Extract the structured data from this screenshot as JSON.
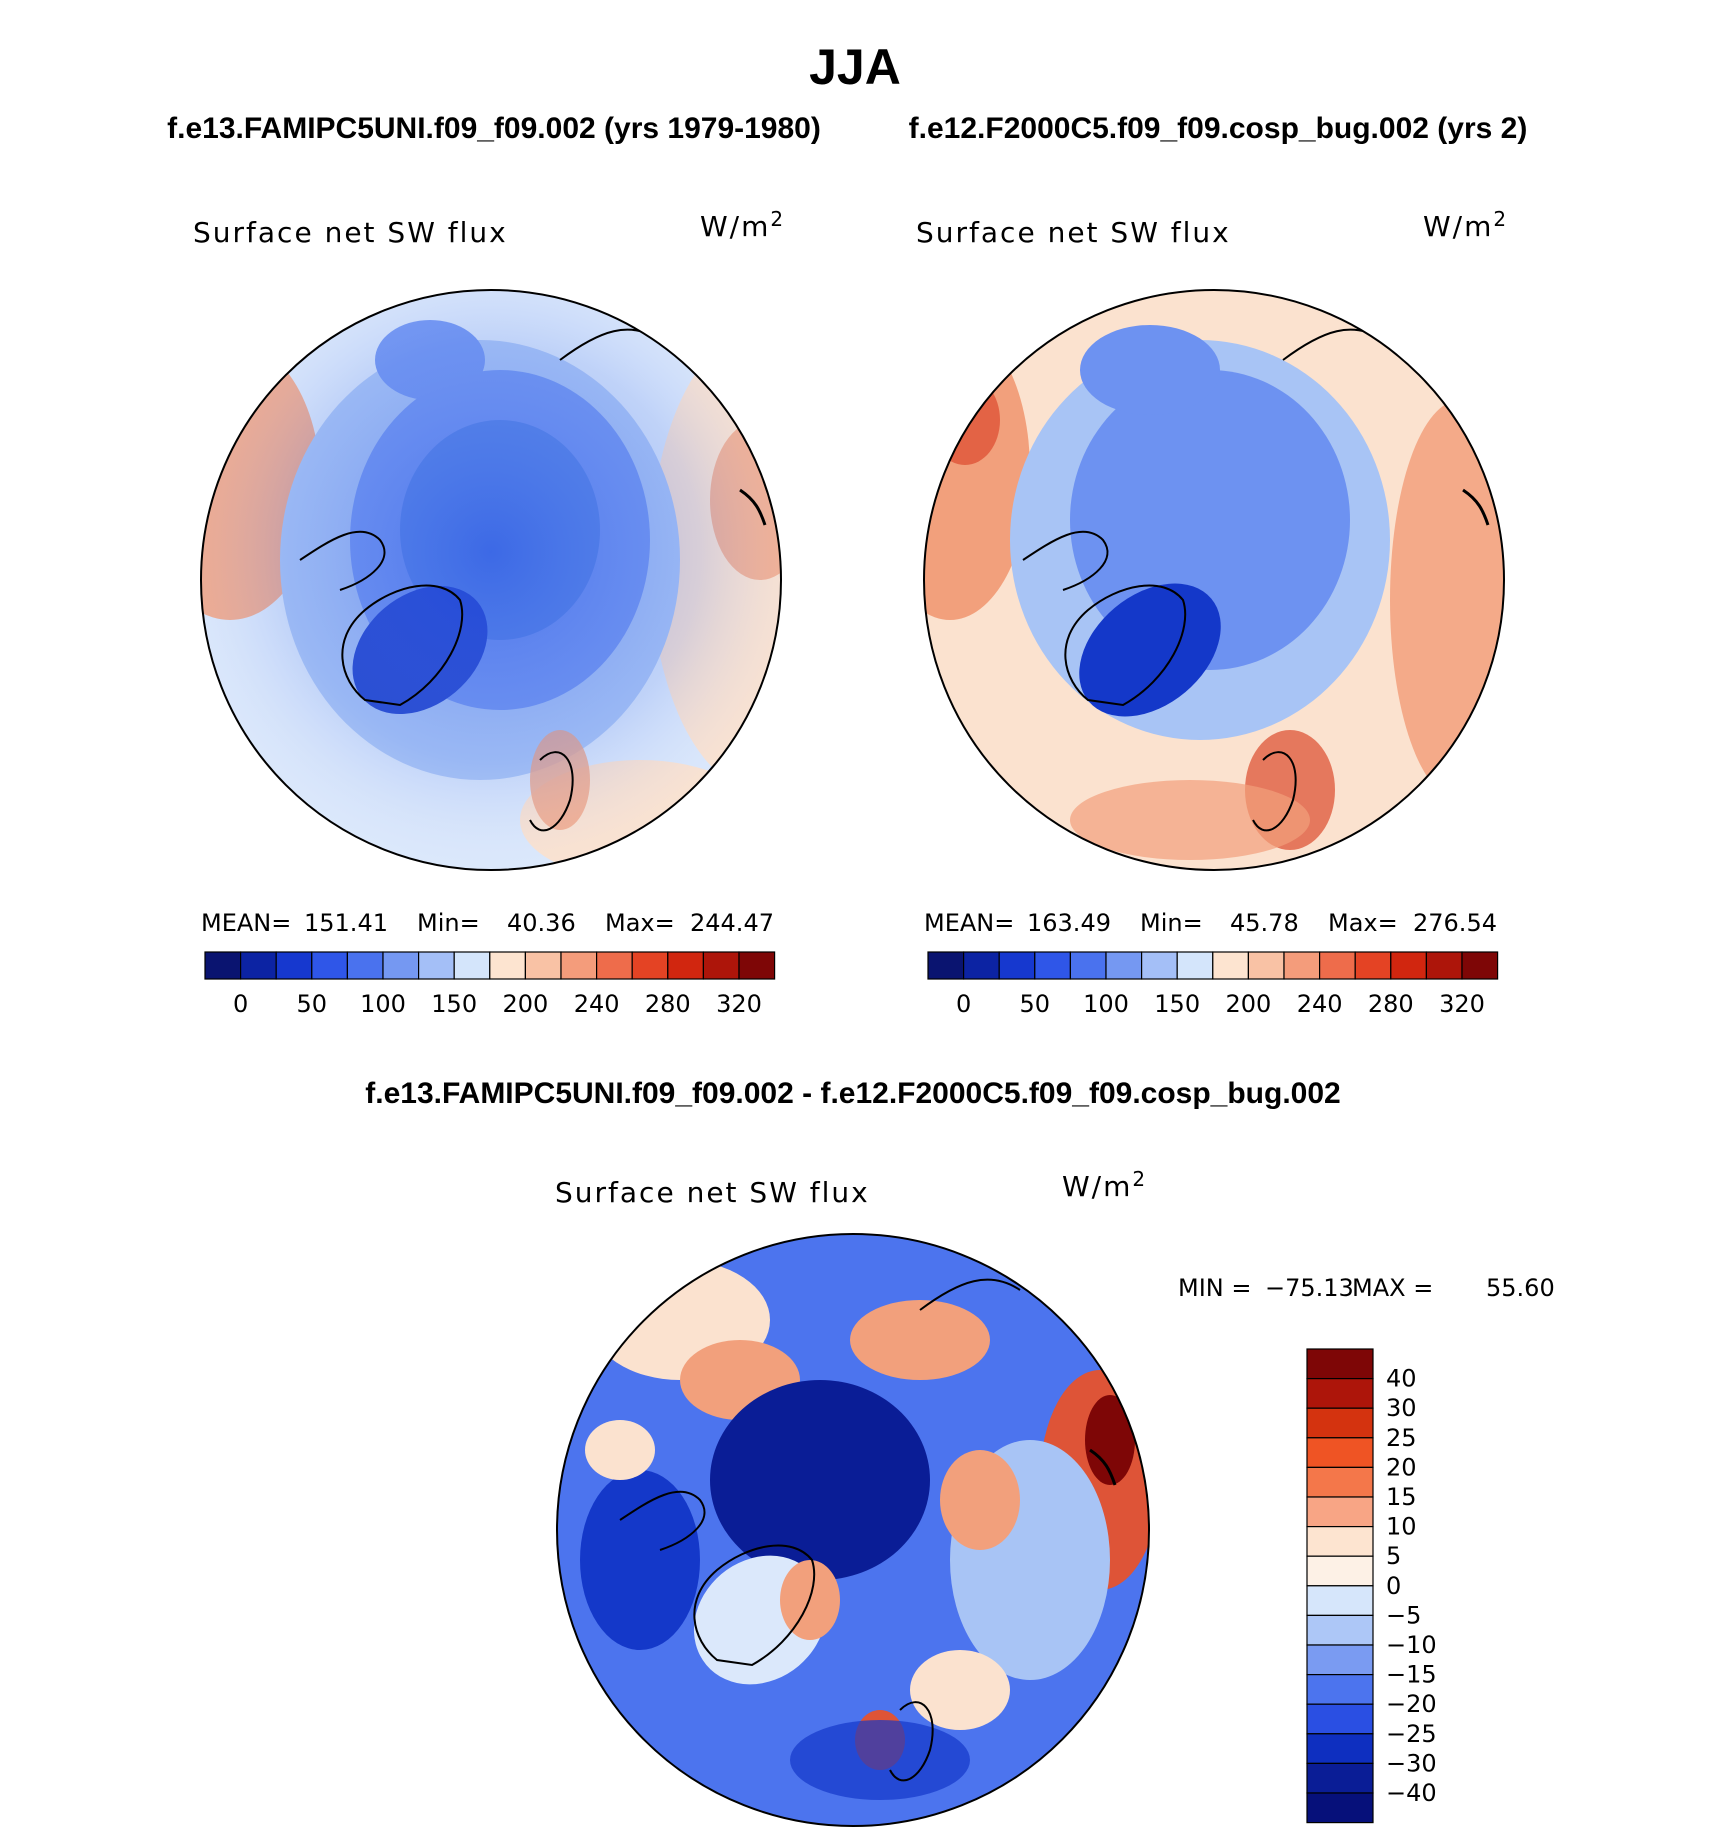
{
  "season": "JJA",
  "header": {
    "left": "f.e13.FAMIPC5UNI.f09_f09.002 (yrs 1979-1980)",
    "right": "f.e12.F2000C5.f09_f09.cosp_bug.002 (yrs 2)"
  },
  "diff_title": "f.e13.FAMIPC5UNI.f09_f09.002 - f.e12.F2000C5.f09_f09.cosp_bug.002",
  "colors": {
    "ocean_blue": "#4f7fe6",
    "deep_blue": "#1438c9",
    "light_blue": "#a8c4f5",
    "pale_blue": "#dbe8fb",
    "pale_orange": "#fbe2cf",
    "orange": "#f2a07c",
    "red": "#de5437",
    "coast": "#000000"
  },
  "chart_data": [
    {
      "type": "heatmap",
      "panel": "left",
      "variable": "Surface net SW flux",
      "units_prefix": "W/m",
      "units_exp": "2",
      "stats": {
        "mean_label": "MEAN=",
        "mean": "151.41",
        "min_label": "Min=",
        "min": "40.36",
        "max_label": "Max=",
        "max": "244.47"
      },
      "levels": [
        "0",
        "50",
        "100",
        "150",
        "200",
        "240",
        "280",
        "320"
      ],
      "colorbar": [
        "#0a1470",
        "#0c23a3",
        "#1638cf",
        "#2f56e8",
        "#4a72ee",
        "#7598f2",
        "#a4bff7",
        "#d4e5fb",
        "#fde4d0",
        "#f9c2a5",
        "#f49c7b",
        "#ee6c4b",
        "#e44324",
        "#d1260f",
        "#ad150a",
        "#7e0606"
      ]
    },
    {
      "type": "heatmap",
      "panel": "right",
      "variable": "Surface net SW flux",
      "units_prefix": "W/m",
      "units_exp": "2",
      "stats": {
        "mean_label": "MEAN=",
        "mean": "163.49",
        "min_label": "Min=",
        "min": "45.78",
        "max_label": "Max=",
        "max": "276.54"
      },
      "levels": [
        "0",
        "50",
        "100",
        "150",
        "200",
        "240",
        "280",
        "320"
      ],
      "colorbar": [
        "#0a1470",
        "#0c23a3",
        "#1638cf",
        "#2f56e8",
        "#4a72ee",
        "#7598f2",
        "#a4bff7",
        "#d4e5fb",
        "#fde4d0",
        "#f9c2a5",
        "#f49c7b",
        "#ee6c4b",
        "#e44324",
        "#d1260f",
        "#ad150a",
        "#7e0606"
      ]
    },
    {
      "type": "heatmap",
      "panel": "difference",
      "variable": "Surface net SW flux",
      "units_prefix": "W/m",
      "units_exp": "2",
      "stats": {
        "min_label": "MIN =",
        "min": "−75.13",
        "max_label": "MAX =",
        "max": "55.60"
      },
      "levels": [
        "40",
        "30",
        "25",
        "20",
        "15",
        "10",
        "5",
        "0",
        "−5",
        "−10",
        "−15",
        "−20",
        "−25",
        "−30",
        "−40"
      ],
      "colorbar": [
        "#7e0606",
        "#ad150a",
        "#d4330f",
        "#ef5424",
        "#f4774a",
        "#f8a585",
        "#fde4d0",
        "#fdf1e6",
        "#d6e6fb",
        "#adc7f7",
        "#7a9bf2",
        "#4c74ee",
        "#2a4fe3",
        "#0e2fc0",
        "#0a1d96",
        "#06107a"
      ]
    }
  ]
}
